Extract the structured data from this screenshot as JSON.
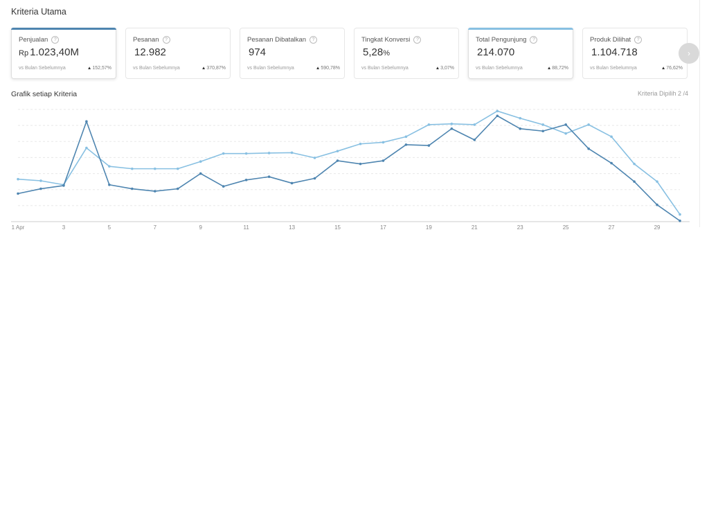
{
  "section": {
    "title": "Kriteria Utama"
  },
  "cards": [
    {
      "label": "Penjualan",
      "currency": "Rp",
      "value": "1.023,40M",
      "unit": "",
      "compare": "vs Bulan Sebelumnya",
      "change": "152,57%",
      "selected": "dark"
    },
    {
      "label": "Pesanan",
      "currency": "",
      "value": "12.982",
      "unit": "",
      "compare": "vs Bulan Sebelumnya",
      "change": "370,87%",
      "selected": ""
    },
    {
      "label": "Pesanan Dibatalkan",
      "currency": "",
      "value": "974",
      "unit": "",
      "compare": "vs Bulan Sebelumnya",
      "change": "590,78%",
      "selected": ""
    },
    {
      "label": "Tingkat Konversi",
      "currency": "",
      "value": "5,28",
      "unit": "%",
      "compare": "vs Bulan Sebelumnya",
      "change": "3,07%",
      "selected": ""
    },
    {
      "label": "Total Pengunjung",
      "currency": "",
      "value": "214.070",
      "unit": "",
      "compare": "vs Bulan Sebelumnya",
      "change": "88,72%",
      "selected": "light"
    },
    {
      "label": "Produk Dilihat",
      "currency": "",
      "value": "1.104.718",
      "unit": "",
      "compare": "vs Bulan Sebelumnya",
      "change": "76,62%",
      "selected": ""
    }
  ],
  "icons": {
    "info": "info-icon",
    "next": "chevron-right-icon",
    "trend_up": "triangle-up-icon"
  },
  "chart": {
    "title": "Grafik setiap Kriteria",
    "meta": "Kriteria Dipilih 2 /4"
  },
  "colors": {
    "series_dark": "#4e85b0",
    "series_light": "#88c0e2",
    "grid": "#e8e8e8",
    "axis": "#cccccc"
  },
  "chart_data": {
    "type": "line",
    "x": [
      1,
      2,
      3,
      4,
      5,
      6,
      7,
      8,
      9,
      10,
      11,
      12,
      13,
      14,
      15,
      16,
      17,
      18,
      19,
      20,
      21,
      22,
      23,
      24,
      25,
      26,
      27,
      28,
      29,
      30
    ],
    "x_tick_labels": [
      "1 Apr",
      "3",
      "5",
      "7",
      "9",
      "11",
      "13",
      "15",
      "17",
      "19",
      "21",
      "23",
      "25",
      "27",
      "29"
    ],
    "ylim": [
      0,
      7
    ],
    "grid": true,
    "series": [
      {
        "values": [
          1.75,
          2.05,
          2.25,
          6.25,
          2.3,
          2.05,
          1.9,
          2.05,
          3.0,
          2.2,
          2.6,
          2.8,
          2.4,
          2.7,
          3.8,
          3.6,
          3.8,
          4.8,
          4.75,
          5.8,
          5.1,
          6.6,
          5.8,
          5.65,
          6.05,
          4.55,
          3.65,
          2.5,
          1.05,
          0.05
        ]
      },
      {
        "values": [
          2.65,
          2.55,
          2.3,
          4.6,
          3.45,
          3.3,
          3.3,
          3.3,
          3.75,
          4.25,
          4.25,
          4.28,
          4.3,
          3.98,
          4.4,
          4.85,
          4.95,
          5.3,
          6.05,
          6.1,
          6.05,
          6.9,
          6.45,
          6.05,
          5.5,
          6.05,
          5.3,
          3.6,
          2.5,
          0.45
        ]
      }
    ]
  }
}
